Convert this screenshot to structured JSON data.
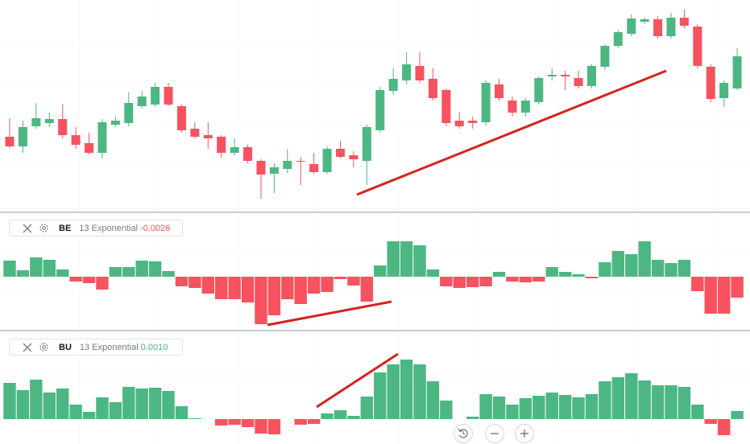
{
  "chart_data": [
    {
      "type": "candlestick",
      "up_color": "#4cb782",
      "down_color": "#f7525f",
      "ylim": [
        0,
        263
      ],
      "open": [
        93,
        81,
        106,
        110,
        115,
        95,
        85,
        73,
        108,
        110,
        131,
        133,
        155,
        131,
        103,
        95,
        93,
        73,
        80,
        63,
        47,
        53,
        63,
        59,
        49,
        78,
        70,
        63,
        101,
        150,
        163,
        181,
        165,
        151,
        113,
        113,
        111,
        158,
        138,
        123,
        136,
        168,
        170,
        166,
        156,
        180,
        206,
        221,
        236,
        239,
        218,
        241,
        230,
        180,
        141,
        153
      ],
      "high": [
        116,
        113,
        135,
        123,
        133,
        105,
        98,
        115,
        118,
        148,
        150,
        160,
        160,
        133,
        111,
        111,
        95,
        91,
        83,
        65,
        60,
        78,
        68,
        73,
        81,
        88,
        75,
        108,
        155,
        178,
        198,
        198,
        178,
        153,
        123,
        118,
        163,
        165,
        143,
        141,
        168,
        178,
        175,
        175,
        183,
        208,
        226,
        245,
        241,
        243,
        247,
        251,
        233,
        183,
        163,
        203
      ],
      "low": [
        79,
        73,
        103,
        105,
        91,
        78,
        71,
        66,
        105,
        106,
        128,
        130,
        131,
        98,
        91,
        78,
        67,
        70,
        60,
        16,
        23,
        48,
        33,
        47,
        47,
        66,
        55,
        33,
        98,
        145,
        158,
        160,
        138,
        106,
        103,
        103,
        107,
        138,
        118,
        118,
        133,
        163,
        151,
        153,
        153,
        176,
        203,
        218,
        233,
        215,
        215,
        228,
        178,
        136,
        130,
        151
      ],
      "close": [
        81,
        105,
        116,
        115,
        95,
        83,
        73,
        111,
        113,
        135,
        143,
        155,
        133,
        101,
        93,
        91,
        73,
        80,
        63,
        46,
        55,
        63,
        62,
        49,
        78,
        68,
        65,
        105,
        151,
        165,
        183,
        163,
        141,
        110,
        106,
        110,
        160,
        141,
        123,
        138,
        166,
        170,
        168,
        156,
        181,
        206,
        223,
        240,
        239,
        218,
        241,
        231,
        181,
        140,
        160,
        193
      ]
    },
    {
      "type": "bar",
      "legend": {
        "name": "BE",
        "description": "13 Exponential",
        "value": -0.0026
      },
      "positive_color": "#4cb782",
      "negative_color": "#f7525f",
      "ylim": [
        -0.0066,
        0.0079
      ],
      "values": [
        0.002,
        0.0008,
        0.0024,
        0.0021,
        0.0009,
        -0.0006,
        -0.0008,
        -0.0016,
        0.0012,
        0.0012,
        0.002,
        0.0019,
        0.0007,
        -0.0012,
        -0.0014,
        -0.0021,
        -0.0028,
        -0.0028,
        -0.0032,
        -0.0059,
        -0.0048,
        -0.0028,
        -0.0034,
        -0.0021,
        -0.0019,
        -0.0003,
        -0.0011,
        -0.0031,
        0.0014,
        0.0044,
        0.0044,
        0.0039,
        0.0009,
        -0.0012,
        -0.0014,
        -0.0013,
        -0.0012,
        0.0006,
        -0.0006,
        -0.0007,
        -0.0006,
        0.0012,
        0.0006,
        0.0003,
        -0.0002,
        0.0018,
        0.0032,
        0.0028,
        0.0044,
        0.0021,
        0.0017,
        0.0021,
        -0.0018,
        -0.0046,
        -0.0046,
        -0.0026
      ]
    },
    {
      "type": "bar",
      "legend": {
        "name": "BU",
        "description": "13 Exponential",
        "value": 0.001,
        "value_label": "0.0010"
      },
      "positive_color": "#4cb782",
      "negative_color": "#f7525f",
      "ylim": [
        -0.0031,
        0.0109
      ],
      "values": [
        0.0045,
        0.0036,
        0.0049,
        0.0033,
        0.0038,
        0.0018,
        0.0009,
        0.0027,
        0.0021,
        0.004,
        0.0038,
        0.0039,
        0.0035,
        0.0016,
        0.0001,
        0,
        -0.0008,
        -0.0007,
        -0.001,
        -0.0018,
        -0.0019,
        0,
        -0.0007,
        -0.0006,
        0.0007,
        0.0011,
        0.0004,
        0.0028,
        0.0058,
        0.0068,
        0.0074,
        0.0068,
        0.0047,
        0.0023,
        0,
        0.0003,
        0.0031,
        0.0028,
        0.0018,
        0.0026,
        0.0029,
        0.0033,
        0.003,
        0.0027,
        0.0031,
        0.0047,
        0.0052,
        0.0057,
        0.0048,
        0.0042,
        0.0042,
        0.004,
        0.0018,
        -0.0006,
        -0.002,
        0.001
      ]
    }
  ]
}
